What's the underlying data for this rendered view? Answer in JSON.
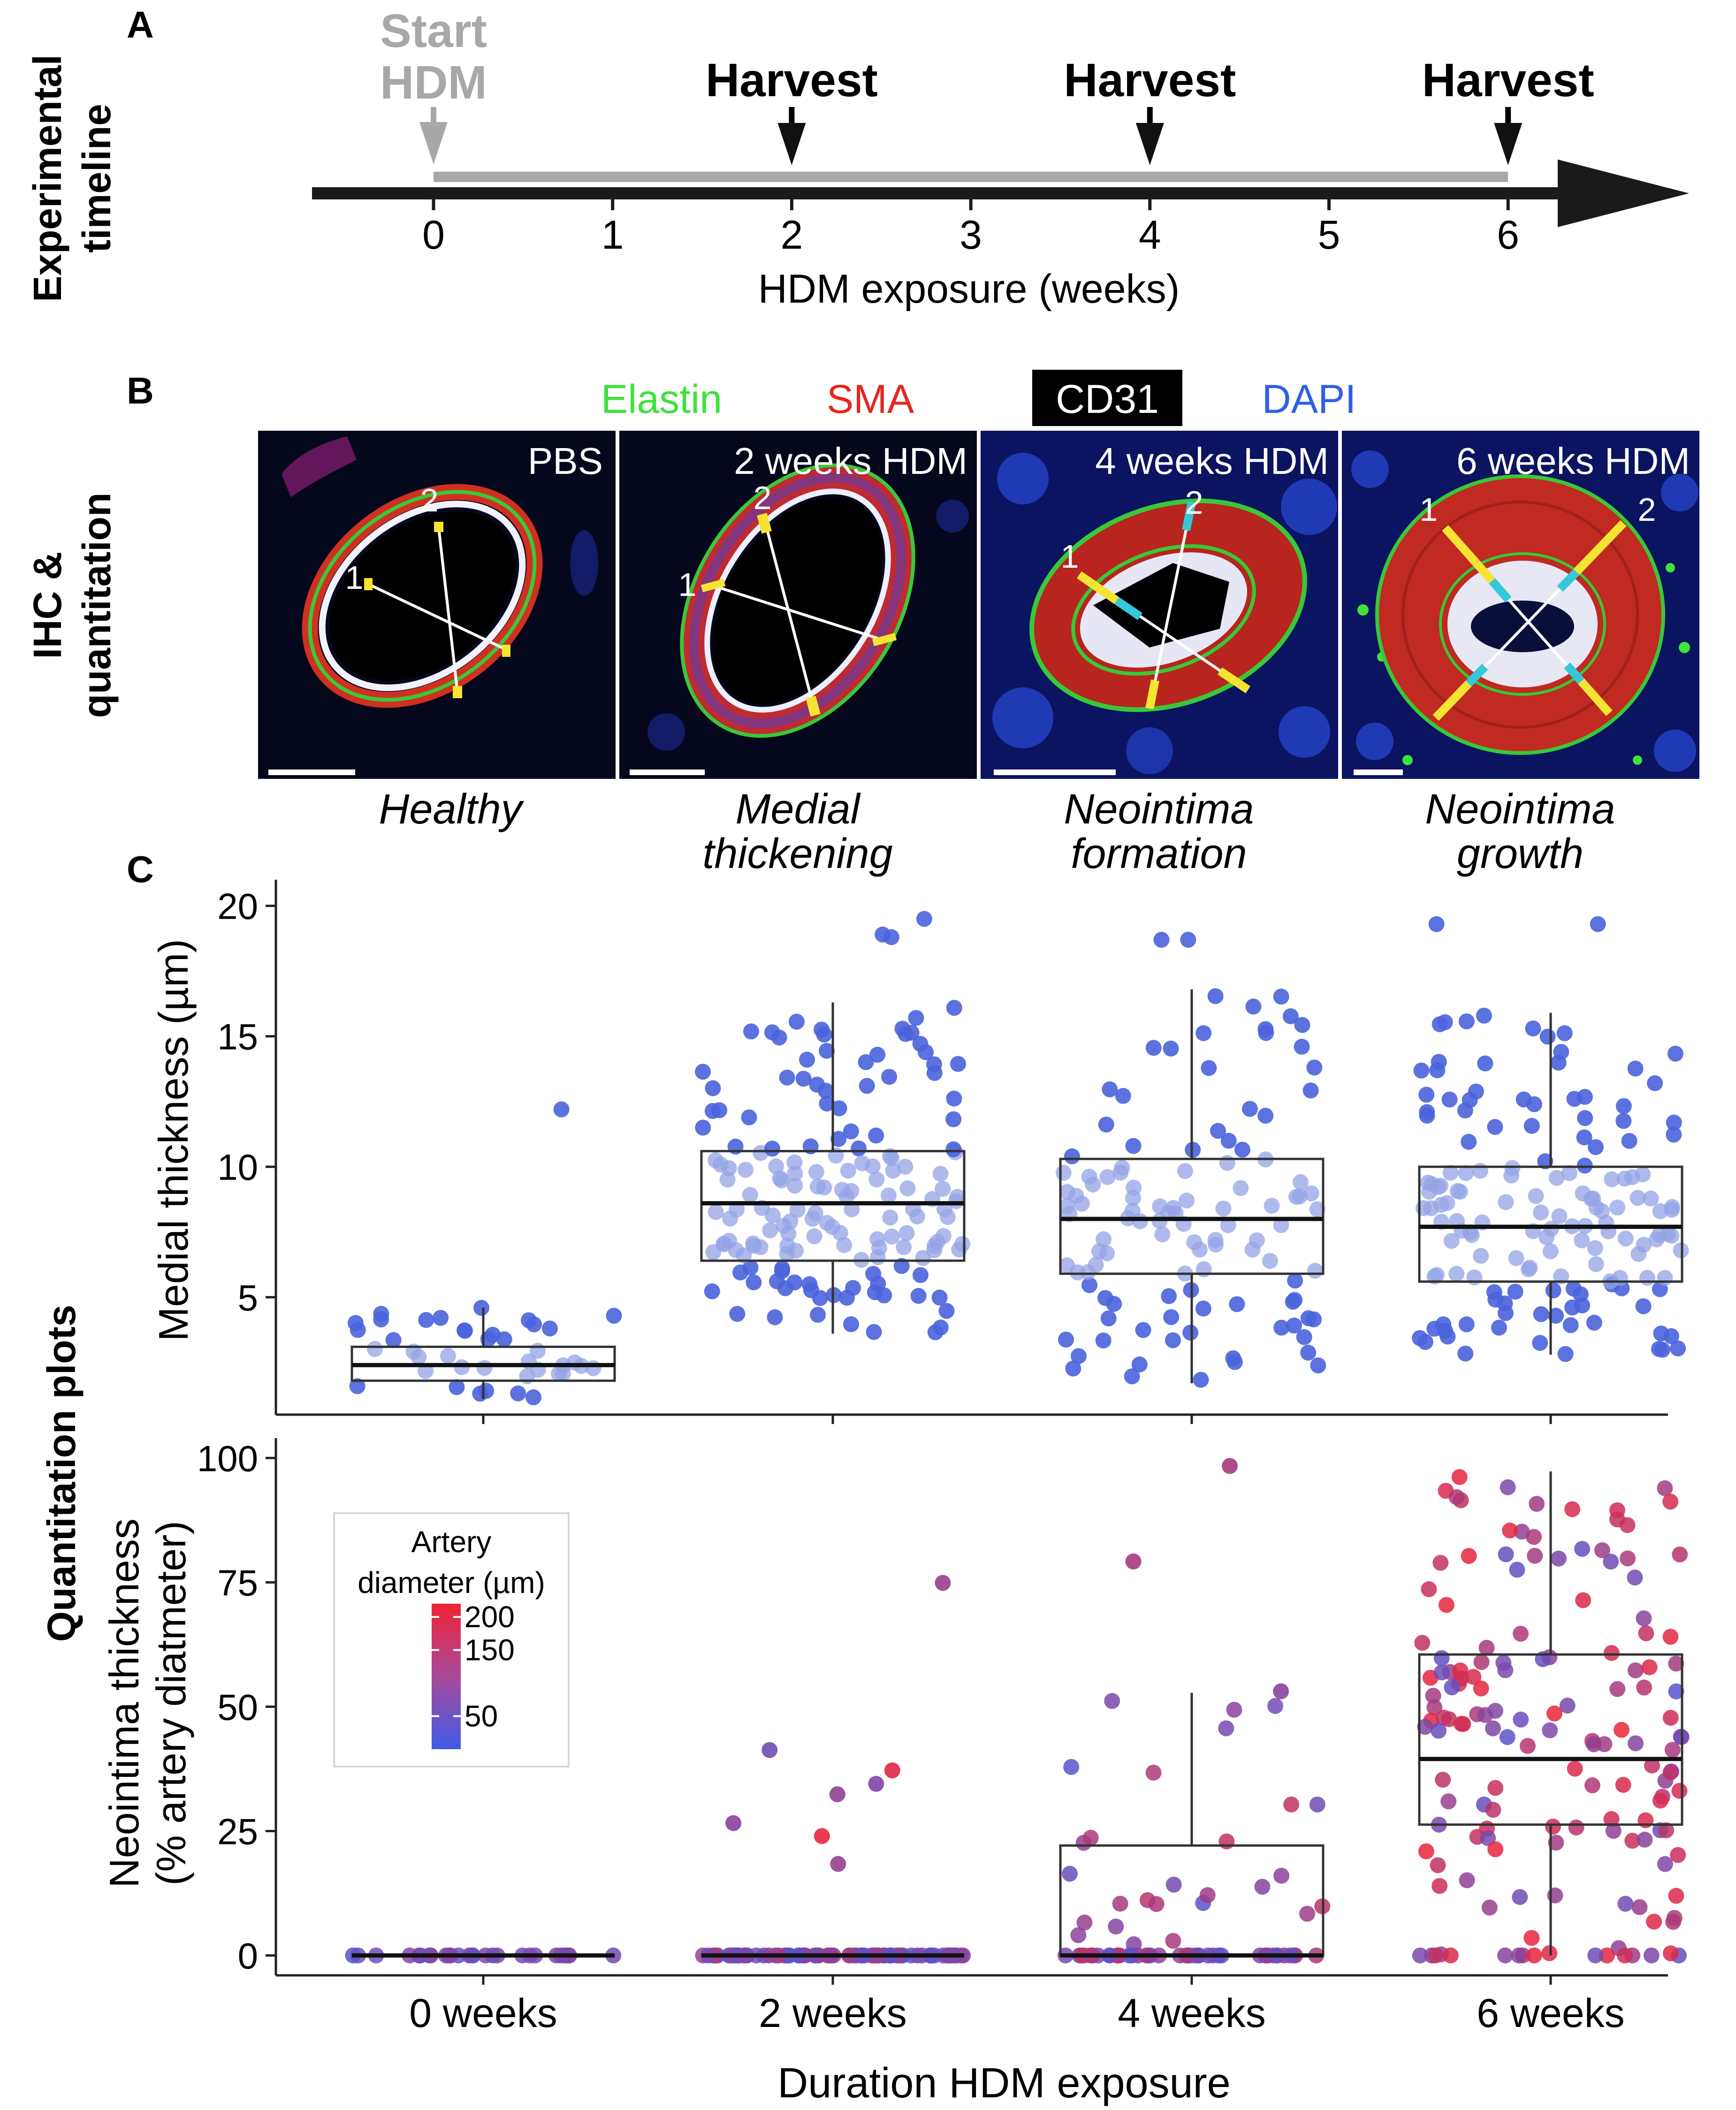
{
  "panels": {
    "a": "A",
    "b": "B",
    "c": "C"
  },
  "row_labels": {
    "timeline_1": "Experimental",
    "timeline_2": "timeline",
    "ihc_1": "IHC &",
    "ihc_2": "quantitation",
    "quant": "Quantitation plots"
  },
  "timeline": {
    "start_1": "Start",
    "start_2": "HDM",
    "harvest": "Harvest",
    "ticks": [
      "0",
      "1",
      "2",
      "3",
      "4",
      "5",
      "6"
    ],
    "xlabel": "HDM exposure (weeks)",
    "harvest_weeks": [
      2,
      4,
      6
    ]
  },
  "stain_legend": {
    "elastin": "Elastin",
    "sma": "SMA",
    "cd31": "CD31",
    "dapi": "DAPI",
    "colors": {
      "elastin": "#3ee23a",
      "sma": "#e3281e",
      "cd31_bg": "#000000",
      "dapi": "#2f5fe6"
    }
  },
  "micrographs": [
    {
      "label": "PBS",
      "caption": "Healthy",
      "caption_2": ""
    },
    {
      "label": "2 weeks HDM",
      "caption": "Medial",
      "caption_2": "thickening"
    },
    {
      "label": "4 weeks HDM",
      "caption": "Neointima",
      "caption_2": "formation"
    },
    {
      "label": "6 weeks HDM",
      "caption": "Neointima",
      "caption_2": "growth"
    }
  ],
  "measure_labels": {
    "one": "1",
    "two": "2"
  },
  "legend": {
    "title_1": "Artery",
    "title_2": "diameter (µm)",
    "ticks": [
      {
        "label": "200",
        "value": 200
      },
      {
        "label": "150",
        "value": 150
      },
      {
        "label": "50",
        "value": 50
      }
    ],
    "range": [
      0,
      220
    ],
    "color_low": "#3f5be6",
    "color_high": "#f02234"
  },
  "chart_data": [
    {
      "type": "box",
      "title": "",
      "ylabel": "Medial thickness (µm)",
      "xlabel": "",
      "ylim": [
        0.5,
        21
      ],
      "yticks": [
        5,
        10,
        15,
        20
      ],
      "categories": [
        "0 weeks",
        "2 weeks",
        "4 weeks",
        "6 weeks"
      ],
      "boxes": [
        {
          "min": 1.1,
          "q1": 1.8,
          "median": 2.4,
          "q3": 3.1,
          "max": 4.6
        },
        {
          "min": 3.6,
          "q1": 6.4,
          "median": 8.6,
          "q3": 10.6,
          "max": 16.3
        },
        {
          "min": 1.7,
          "q1": 5.9,
          "median": 8.0,
          "q3": 10.3,
          "max": 16.8
        },
        {
          "min": 2.8,
          "q1": 5.6,
          "median": 7.7,
          "q3": 10.0,
          "max": 15.9
        }
      ],
      "outliers": [
        {
          "group": 0,
          "y": 12.2
        },
        {
          "group": 1,
          "y": 19.5
        },
        {
          "group": 1,
          "y": 18.9
        },
        {
          "group": 1,
          "y": 18.8
        },
        {
          "group": 2,
          "y": 18.7
        },
        {
          "group": 2,
          "y": 18.7
        },
        {
          "group": 3,
          "y": 19.3
        },
        {
          "group": 3,
          "y": 19.3
        }
      ]
    },
    {
      "type": "box",
      "title": "",
      "ylabel": "Neointima thickness",
      "ylabel_2": "(% artery diatmeter)",
      "xlabel": "Duration HDM exposure",
      "ylim": [
        -4,
        104
      ],
      "yticks": [
        0,
        25,
        50,
        75,
        100
      ],
      "categories": [
        "0 weeks",
        "2 weeks",
        "4 weeks",
        "6 weeks"
      ],
      "boxes": [
        {
          "min": 0,
          "q1": 0,
          "median": 0,
          "q3": 0,
          "max": 0
        },
        {
          "min": 0,
          "q1": 0,
          "median": 0,
          "q3": 0,
          "max": 0
        },
        {
          "min": 0,
          "q1": 0,
          "median": 0,
          "q3": 22.1,
          "max": 52.8
        },
        {
          "min": 0,
          "q1": 26.3,
          "median": 39.5,
          "q3": 60.5,
          "max": 97.3
        }
      ],
      "outliers": [
        {
          "group": 1,
          "y": 74.9,
          "diameter": 110
        },
        {
          "group": 1,
          "y": 41.3,
          "diameter": 60
        },
        {
          "group": 1,
          "y": 37.2,
          "diameter": 200
        },
        {
          "group": 1,
          "y": 34.5,
          "diameter": 80
        },
        {
          "group": 1,
          "y": 32.4,
          "diameter": 100
        },
        {
          "group": 1,
          "y": 26.6,
          "diameter": 90
        },
        {
          "group": 1,
          "y": 24.0,
          "diameter": 210
        },
        {
          "group": 1,
          "y": 18.4,
          "diameter": 110
        },
        {
          "group": 2,
          "y": 98.4,
          "diameter": 130
        },
        {
          "group": 2,
          "y": 79.2,
          "diameter": 130
        },
        {
          "group": 2,
          "y": 53.1,
          "diameter": 90
        }
      ]
    }
  ]
}
